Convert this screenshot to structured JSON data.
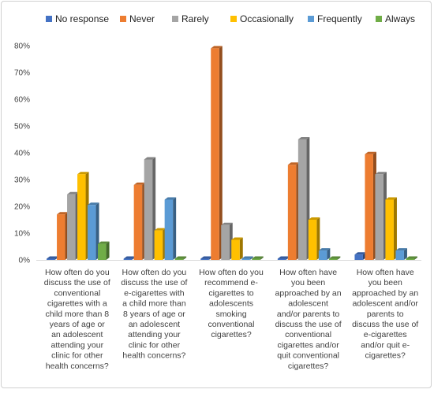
{
  "chart_data": {
    "type": "bar",
    "title": "",
    "xlabel": "",
    "ylabel": "",
    "ylim": [
      0,
      80
    ],
    "y_ticks": [
      "0%",
      "10%",
      "20%",
      "30%",
      "40%",
      "50%",
      "60%",
      "70%",
      "80%"
    ],
    "grid": false,
    "legend_position": "top",
    "categories": [
      [
        "How often do you",
        "discuss the use of",
        "conventional",
        "cigarettes with a",
        "child more than 8",
        "years of age or",
        "an adolescent",
        "attending your",
        "clinic for other",
        "health concerns?"
      ],
      [
        "How often do you",
        "discuss the use of",
        "e-cigarettes with",
        "a child more than",
        "8 years of age or",
        "an adolescent",
        "attending your",
        "clinic for other",
        "health concerns?"
      ],
      [
        "How often do you",
        "recommend e-",
        "cigarettes to",
        "adolescents",
        "smoking",
        "conventional",
        "cigarettes?"
      ],
      [
        "How often have",
        "you been",
        "approached by an",
        "adolescent",
        "and/or parents to",
        "discuss the use of",
        "conventional",
        "cigarettes and/or",
        "quit conventional",
        "cigarettes?"
      ],
      [
        "How often have",
        "you been",
        "approached by an",
        "adolescent and/or",
        "parents to",
        "discuss the use of",
        "e-cigarettes",
        "and/or quit e-",
        "cigarettes?"
      ]
    ],
    "series": [
      {
        "name": "No response",
        "color": "#4472C4",
        "values": [
          0,
          0,
          0,
          0,
          2
        ]
      },
      {
        "name": "Never",
        "color": "#ED7D31",
        "values": [
          17,
          28,
          79,
          35.5,
          39.5
        ]
      },
      {
        "name": "Rarely",
        "color": "#A5A5A5",
        "values": [
          24.5,
          37.5,
          13,
          45,
          32
        ]
      },
      {
        "name": "Occasionally",
        "color": "#FFC000",
        "values": [
          32,
          11,
          7.5,
          15,
          22.5
        ]
      },
      {
        "name": "Frequently",
        "color": "#5B9BD5",
        "values": [
          20.5,
          22.5,
          0,
          3.5,
          3.5
        ]
      },
      {
        "name": "Always",
        "color": "#70AD47",
        "values": [
          6,
          0,
          0,
          0,
          0
        ]
      }
    ]
  }
}
